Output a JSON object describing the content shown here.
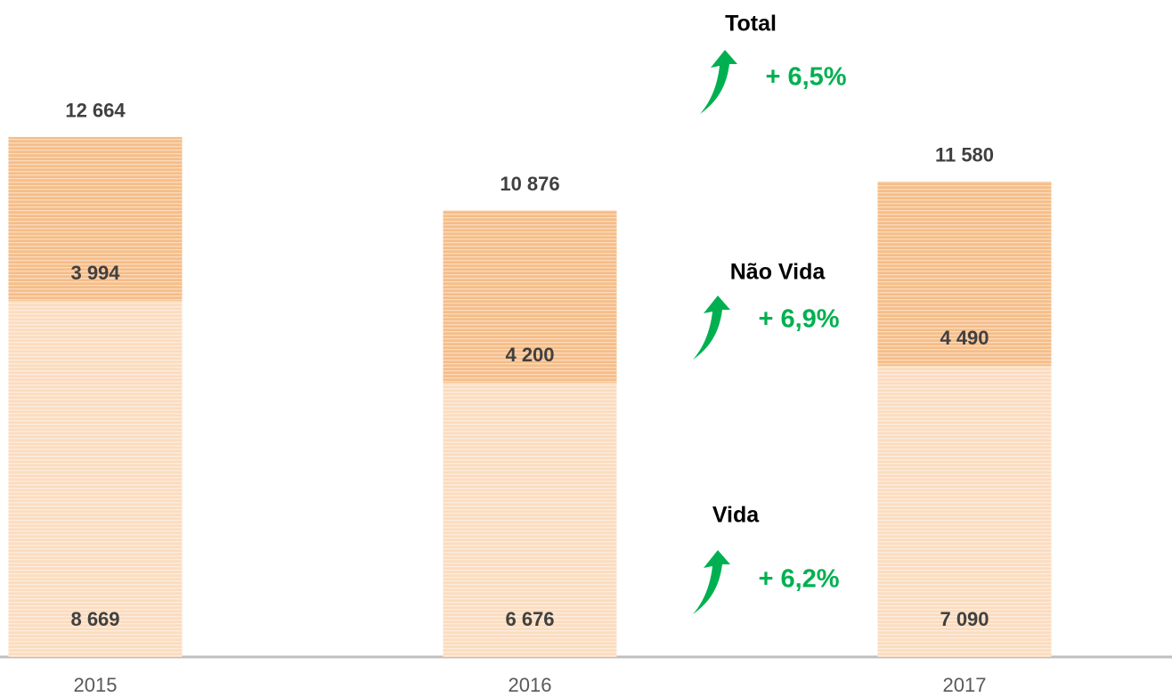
{
  "chart_data": {
    "type": "stacked_bar",
    "categories": [
      "2015",
      "2016",
      "2017"
    ],
    "series": [
      {
        "name": "Vida",
        "color": "#fbdcbf",
        "values": [
          8669,
          6676,
          7090
        ],
        "value_labels": [
          "8 669",
          "6 676",
          "7 090"
        ]
      },
      {
        "name": "Não Vida",
        "color": "#f6bd88",
        "values": [
          3994,
          4200,
          4490
        ],
        "value_labels": [
          "3 994",
          "4 200",
          "4 490"
        ]
      }
    ],
    "totals": {
      "values": [
        12664,
        10876,
        11580
      ],
      "value_labels": [
        "12 664",
        "10 876",
        "11 580"
      ]
    },
    "annotations": [
      {
        "title": "Total",
        "growth": "+ 6,5%"
      },
      {
        "title": "Não Vida",
        "growth": "+ 6,9%"
      },
      {
        "title": "Vida",
        "growth": "+ 6,2%"
      }
    ],
    "ylim": [
      0,
      16000
    ]
  }
}
